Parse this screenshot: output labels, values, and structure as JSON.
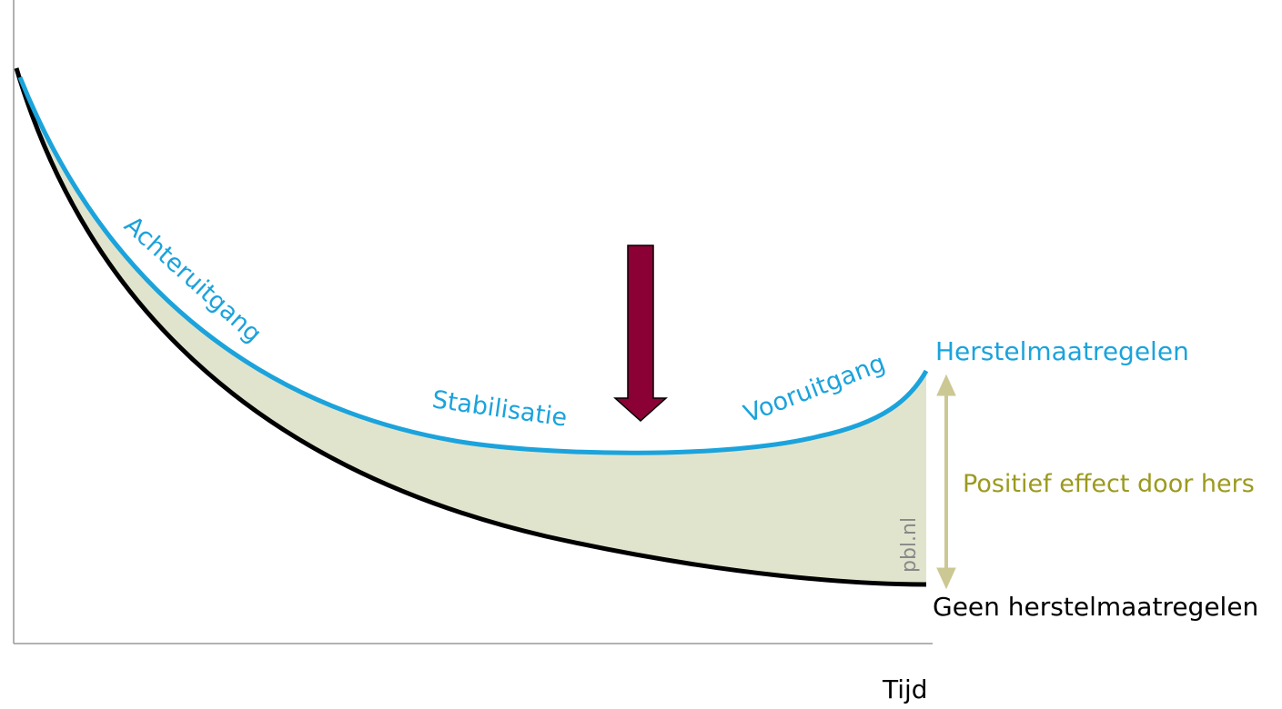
{
  "labels": {
    "decline": "Achteruitgang",
    "stabilisation": "Stabilisatie",
    "improvement": "Vooruitgang",
    "with_measures": "Herstelmaatregelen",
    "effect": "Positief effect door hers",
    "without_measures": "Geen herstelmaatregelen",
    "source": "pbl.nl",
    "x_axis": "Tijd"
  }
}
